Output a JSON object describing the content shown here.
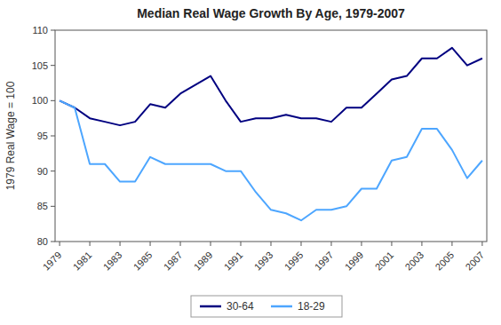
{
  "chart_data": {
    "type": "line",
    "title": "Median Real Wage Growth By Age, 1979-2007",
    "ylabel": "1979 Real Wage = 100",
    "x": [
      1979,
      1980,
      1981,
      1982,
      1983,
      1984,
      1985,
      1986,
      1987,
      1989,
      1990,
      1991,
      1992,
      1993,
      1994,
      1995,
      1996,
      1997,
      1998,
      1999,
      2000,
      2001,
      2002,
      2003,
      2004,
      2005,
      2006,
      2007
    ],
    "series": [
      {
        "name": "30-64",
        "color": "#000080",
        "values": [
          100,
          99,
          97.5,
          97,
          96.5,
          97,
          99.5,
          99,
          101,
          103.5,
          100,
          97,
          97.5,
          97.5,
          98,
          97.5,
          97.5,
          97,
          99,
          99,
          101,
          103,
          103.5,
          106,
          106,
          107.5,
          105,
          106
        ]
      },
      {
        "name": "18-29",
        "color": "#4da6ff",
        "values": [
          100,
          99,
          91,
          91,
          88.5,
          88.5,
          92,
          91,
          91,
          91,
          90,
          90,
          87,
          84.5,
          84,
          83,
          84.5,
          84.5,
          85,
          87.5,
          87.5,
          91.5,
          92,
          96,
          96,
          93,
          89,
          91.5
        ]
      }
    ],
    "xlim": [
      1978.7,
      2007.3
    ],
    "xticks": [
      1979,
      1981,
      1983,
      1985,
      1987,
      1989,
      1991,
      1993,
      1995,
      1997,
      1999,
      2001,
      2003,
      2005,
      2007
    ],
    "ylim": [
      80,
      110
    ],
    "yticks": [
      80,
      85,
      90,
      95,
      100,
      105,
      110
    ],
    "grid": false,
    "legend": "bottom"
  }
}
